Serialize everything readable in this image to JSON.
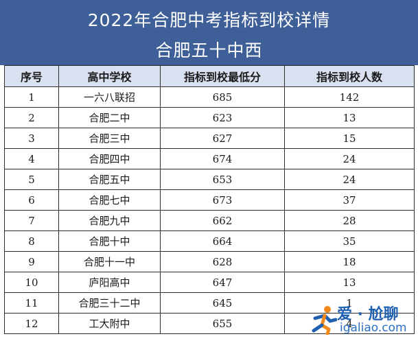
{
  "title": {
    "line1": "2022年合肥中考指标到校详情",
    "line2": "合肥五十中西"
  },
  "table": {
    "headers": [
      "序号",
      "高中学校",
      "指标到校最低分",
      "指标到校人数"
    ],
    "rows": [
      [
        "1",
        "一六八联招",
        "685",
        "142"
      ],
      [
        "2",
        "合肥二中",
        "623",
        "13"
      ],
      [
        "3",
        "合肥三中",
        "627",
        "15"
      ],
      [
        "4",
        "合肥四中",
        "674",
        "24"
      ],
      [
        "5",
        "合肥五中",
        "653",
        "24"
      ],
      [
        "6",
        "合肥七中",
        "673",
        "37"
      ],
      [
        "7",
        "合肥九中",
        "662",
        "28"
      ],
      [
        "8",
        "合肥十中",
        "664",
        "35"
      ],
      [
        "9",
        "合肥十一中",
        "628",
        "18"
      ],
      [
        "10",
        "庐阳高中",
        "647",
        "13"
      ],
      [
        "11",
        "合肥三十二中",
        "645",
        "1"
      ],
      [
        "12",
        "工大附中",
        "655",
        "4"
      ]
    ]
  },
  "watermark": {
    "text": "爱 · 尬聊",
    "url": "igaliao.com"
  },
  "colors": {
    "header_bg": "#3e5f97",
    "table_header_bg": "#d9e1f0",
    "watermark_blue": "#1f5fb0",
    "watermark_orange": "#f08a1d"
  }
}
